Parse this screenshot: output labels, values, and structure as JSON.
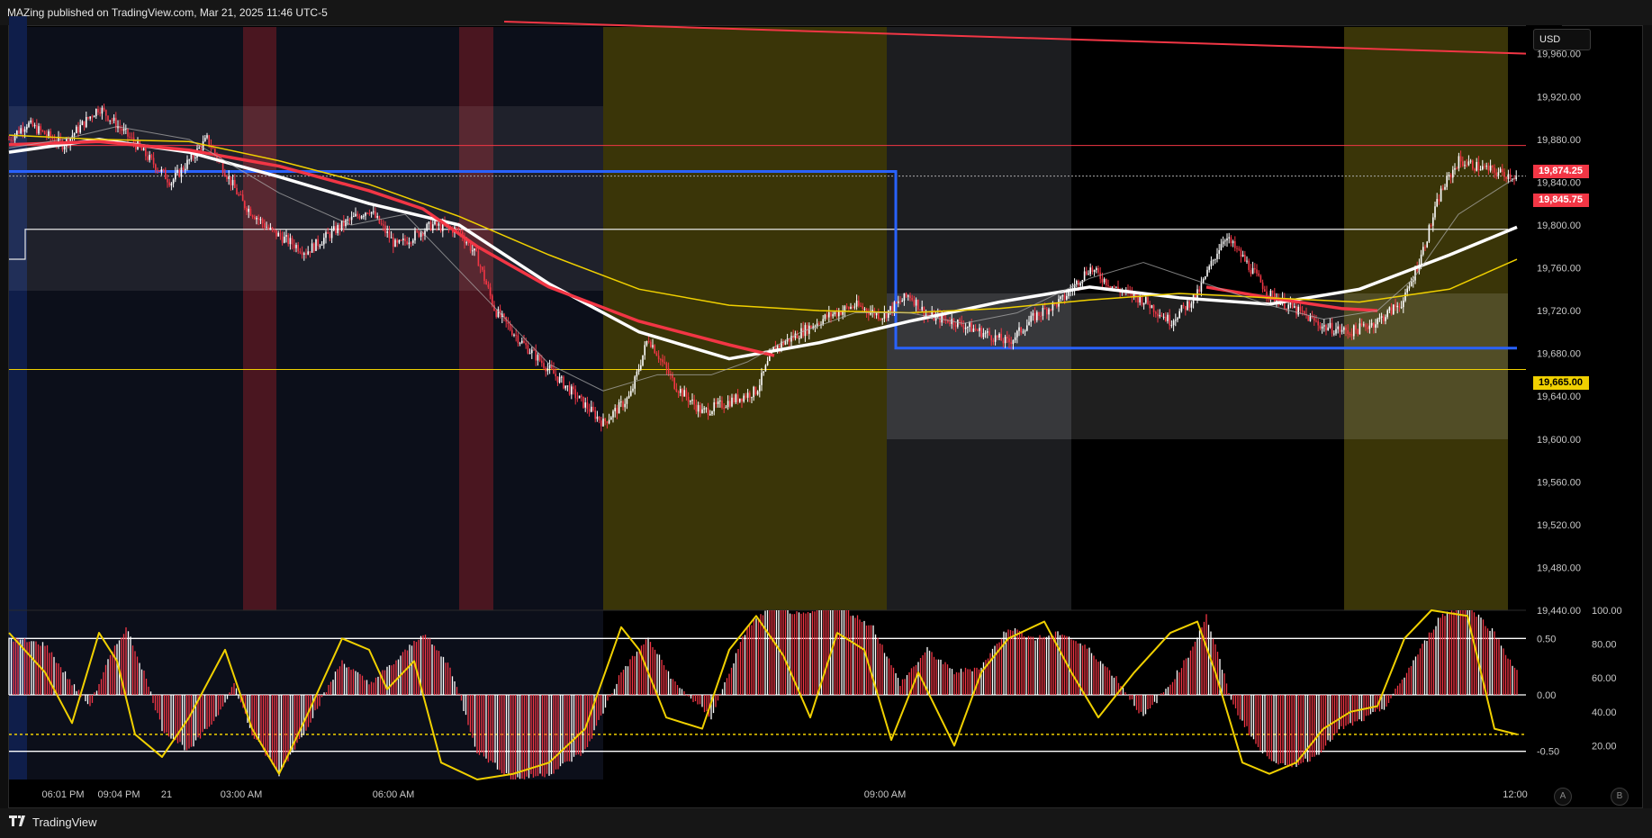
{
  "header": {
    "text": "MAZing published on TradingView.com, Mar 21, 2025 11:46 UTC-5"
  },
  "currency_button": "USD",
  "price_tags": {
    "upper_red": "19,874.25",
    "last_price": "19,845.75",
    "lower_yellow": "19,665.00"
  },
  "footer": {
    "brand": "TradingView",
    "logo_icon": "tradingview-logo-icon"
  },
  "corner_buttons": {
    "auto": "A",
    "log": "B"
  },
  "colors": {
    "up_candle": "#ffffff",
    "down_candle": "#f23645",
    "ma_fast": "#ffffff",
    "ma_red": "#f23645",
    "ma_yellow": "#f0d000",
    "range_box": "#2962ff",
    "yellow_session": "#3a3508",
    "grey_session": "#2e2f33",
    "red_band": "#4a1620",
    "blue_band": "#0f1e4a"
  },
  "chart_data": [
    {
      "type": "candlestick",
      "title": "",
      "y_axis": {
        "ticks": [
          "19,960.00",
          "19,920.00",
          "19,880.00",
          "19,840.00",
          "19,800.00",
          "19,760.00",
          "19,720.00",
          "19,680.00",
          "19,640.00",
          "19,600.00",
          "19,560.00",
          "19,520.00",
          "19,480.00",
          "19,440.00"
        ],
        "range": [
          19440,
          19985
        ]
      },
      "x_axis": {
        "ticks": [
          "06:01 PM",
          "09:04 PM",
          "21",
          "03:00 AM",
          "06:00 AM",
          "09:00 AM",
          "12:00"
        ]
      },
      "horizontal_levels": [
        19874.25,
        19845.75,
        19665.0,
        19796
      ],
      "price_path": [
        [
          0,
          19880
        ],
        [
          20,
          19895
        ],
        [
          60,
          19875
        ],
        [
          100,
          19910
        ],
        [
          130,
          19885
        ],
        [
          180,
          19840
        ],
        [
          220,
          19880
        ],
        [
          260,
          19820
        ],
        [
          290,
          19795
        ],
        [
          330,
          19775
        ],
        [
          370,
          19800
        ],
        [
          400,
          19815
        ],
        [
          430,
          19780
        ],
        [
          470,
          19800
        ],
        [
          500,
          19795
        ],
        [
          520,
          19770
        ],
        [
          540,
          19720
        ],
        [
          570,
          19690
        ],
        [
          600,
          19665
        ],
        [
          630,
          19640
        ],
        [
          660,
          19615
        ],
        [
          690,
          19640
        ],
        [
          710,
          19695
        ],
        [
          740,
          19650
        ],
        [
          770,
          19625
        ],
        [
          800,
          19635
        ],
        [
          830,
          19645
        ],
        [
          850,
          19685
        ],
        [
          880,
          19700
        ],
        [
          910,
          19715
        ],
        [
          940,
          19725
        ],
        [
          970,
          19715
        ],
        [
          1000,
          19735
        ],
        [
          1020,
          19715
        ],
        [
          1050,
          19710
        ],
        [
          1080,
          19700
        ],
        [
          1110,
          19690
        ],
        [
          1140,
          19715
        ],
        [
          1170,
          19730
        ],
        [
          1200,
          19760
        ],
        [
          1230,
          19740
        ],
        [
          1260,
          19730
        ],
        [
          1290,
          19710
        ],
        [
          1320,
          19735
        ],
        [
          1350,
          19790
        ],
        [
          1370,
          19770
        ],
        [
          1400,
          19735
        ],
        [
          1430,
          19720
        ],
        [
          1460,
          19705
        ],
        [
          1490,
          19700
        ],
        [
          1520,
          19710
        ],
        [
          1550,
          19730
        ],
        [
          1570,
          19775
        ],
        [
          1590,
          19830
        ],
        [
          1610,
          19860
        ],
        [
          1630,
          19855
        ],
        [
          1650,
          19850
        ],
        [
          1675,
          19845
        ]
      ],
      "moving_averages": [
        {
          "name": "",
          "color": "#ffffff",
          "points": [
            [
              0,
              19868
            ],
            [
              100,
              19880
            ],
            [
              200,
              19868
            ],
            [
              300,
              19845
            ],
            [
              400,
              19820
            ],
            [
              500,
              19800
            ],
            [
              600,
              19745
            ],
            [
              700,
              19700
            ],
            [
              800,
              19675
            ],
            [
              900,
              19690
            ],
            [
              1000,
              19710
            ],
            [
              1100,
              19728
            ],
            [
              1200,
              19742
            ],
            [
              1300,
              19732
            ],
            [
              1400,
              19726
            ],
            [
              1500,
              19740
            ],
            [
              1600,
              19772
            ],
            [
              1675,
              19798
            ]
          ]
        },
        {
          "name": "",
          "color": "#f23645",
          "points": [
            [
              0,
              19875
            ],
            [
              100,
              19878
            ],
            [
              200,
              19870
            ],
            [
              300,
              19855
            ],
            [
              400,
              19832
            ],
            [
              460,
              19815
            ],
            [
              520,
              19780
            ],
            [
              600,
              19742
            ],
            [
              700,
              19710
            ],
            [
              800,
              19688
            ],
            [
              850,
              19678
            ]
          ]
        },
        {
          "name": "",
          "color": "#f23645",
          "points": [
            [
              1330,
              19742
            ],
            [
              1400,
              19732
            ],
            [
              1480,
              19722
            ],
            [
              1520,
              19720
            ]
          ]
        },
        {
          "name": "",
          "color": "#f0d000",
          "points": [
            [
              0,
              19884
            ],
            [
              100,
              19880
            ],
            [
              200,
              19878
            ],
            [
              300,
              19860
            ],
            [
              400,
              19838
            ],
            [
              500,
              19808
            ],
            [
              600,
              19772
            ],
            [
              700,
              19740
            ],
            [
              800,
              19725
            ],
            [
              900,
              19720
            ],
            [
              1000,
              19718
            ],
            [
              1100,
              19722
            ],
            [
              1200,
              19730
            ],
            [
              1300,
              19736
            ],
            [
              1400,
              19732
            ],
            [
              1500,
              19728
            ],
            [
              1600,
              19740
            ],
            [
              1675,
              19768
            ]
          ]
        },
        {
          "name": "",
          "color": "#b0b0b0",
          "points": [
            [
              0,
              19872
            ],
            [
              60,
              19880
            ],
            [
              120,
              19892
            ],
            [
              200,
              19880
            ],
            [
              300,
              19830
            ],
            [
              380,
              19800
            ],
            [
              440,
              19810
            ],
            [
              520,
              19740
            ],
            [
              600,
              19670
            ],
            [
              660,
              19645
            ],
            [
              720,
              19660
            ],
            [
              780,
              19660
            ],
            [
              820,
              19672
            ],
            [
              880,
              19700
            ],
            [
              940,
              19718
            ],
            [
              1000,
              19718
            ],
            [
              1060,
              19708
            ],
            [
              1120,
              19718
            ],
            [
              1200,
              19750
            ],
            [
              1260,
              19765
            ],
            [
              1330,
              19745
            ],
            [
              1400,
              19725
            ],
            [
              1460,
              19712
            ],
            [
              1520,
              19720
            ],
            [
              1560,
              19750
            ],
            [
              1610,
              19810
            ],
            [
              1675,
              19845
            ]
          ]
        }
      ],
      "range_boxes": [
        {
          "x_range": [
            0,
            985
          ],
          "y": 19850,
          "y_bottom": 19685
        }
      ],
      "red_trend_line": [
        [
          550,
          19990
        ],
        [
          1675,
          19960
        ]
      ]
    },
    {
      "type": "oscillator",
      "left_axis_ticks": [
        "0.50",
        "0.00",
        "-0.50"
      ],
      "right_axis_ticks": [
        "100.00",
        "80.00",
        "60.00",
        "40.00",
        "20.00"
      ],
      "histogram_range": [
        -0.75,
        0.75
      ],
      "line_color": "#f0d000",
      "histogram_path": [
        [
          0,
          0.5
        ],
        [
          40,
          0.45
        ],
        [
          70,
          0.1
        ],
        [
          90,
          -0.1
        ],
        [
          110,
          0.3
        ],
        [
          130,
          0.6
        ],
        [
          150,
          0.2
        ],
        [
          170,
          -0.3
        ],
        [
          200,
          -0.5
        ],
        [
          230,
          -0.2
        ],
        [
          250,
          0.1
        ],
        [
          270,
          -0.35
        ],
        [
          300,
          -0.7
        ],
        [
          330,
          -0.3
        ],
        [
          370,
          0.3
        ],
        [
          400,
          0.1
        ],
        [
          430,
          0.3
        ],
        [
          460,
          0.55
        ],
        [
          490,
          0.25
        ],
        [
          520,
          -0.5
        ],
        [
          560,
          -0.75
        ],
        [
          600,
          -0.7
        ],
        [
          640,
          -0.5
        ],
        [
          680,
          0.2
        ],
        [
          710,
          0.5
        ],
        [
          740,
          0.1
        ],
        [
          780,
          -0.2
        ],
        [
          820,
          0.6
        ],
        [
          850,
          0.8
        ],
        [
          880,
          0.7
        ],
        [
          920,
          0.8
        ],
        [
          960,
          0.6
        ],
        [
          990,
          0.1
        ],
        [
          1020,
          0.4
        ],
        [
          1050,
          0.2
        ],
        [
          1080,
          0.25
        ],
        [
          1110,
          0.6
        ],
        [
          1140,
          0.5
        ],
        [
          1170,
          0.55
        ],
        [
          1200,
          0.4
        ],
        [
          1230,
          0.15
        ],
        [
          1260,
          -0.2
        ],
        [
          1290,
          0.1
        ],
        [
          1310,
          0.35
        ],
        [
          1330,
          0.7
        ],
        [
          1360,
          -0.1
        ],
        [
          1390,
          -0.5
        ],
        [
          1420,
          -0.65
        ],
        [
          1450,
          -0.55
        ],
        [
          1480,
          -0.3
        ],
        [
          1510,
          -0.2
        ],
        [
          1530,
          -0.1
        ],
        [
          1560,
          0.3
        ],
        [
          1590,
          0.7
        ],
        [
          1620,
          0.8
        ],
        [
          1650,
          0.55
        ],
        [
          1675,
          0.2
        ]
      ],
      "signal_path": [
        [
          0,
          0.55
        ],
        [
          40,
          0.2
        ],
        [
          70,
          -0.25
        ],
        [
          100,
          0.55
        ],
        [
          120,
          0.3
        ],
        [
          140,
          -0.35
        ],
        [
          170,
          -0.55
        ],
        [
          200,
          -0.2
        ],
        [
          240,
          0.4
        ],
        [
          270,
          -0.3
        ],
        [
          300,
          -0.7
        ],
        [
          330,
          -0.2
        ],
        [
          370,
          0.5
        ],
        [
          400,
          0.4
        ],
        [
          420,
          0.05
        ],
        [
          450,
          0.3
        ],
        [
          480,
          -0.6
        ],
        [
          520,
          -0.75
        ],
        [
          560,
          -0.7
        ],
        [
          600,
          -0.6
        ],
        [
          640,
          -0.3
        ],
        [
          680,
          0.6
        ],
        [
          700,
          0.4
        ],
        [
          730,
          -0.2
        ],
        [
          770,
          -0.3
        ],
        [
          800,
          0.4
        ],
        [
          830,
          0.7
        ],
        [
          860,
          0.35
        ],
        [
          890,
          -0.2
        ],
        [
          920,
          0.55
        ],
        [
          950,
          0.4
        ],
        [
          980,
          -0.4
        ],
        [
          1010,
          0.2
        ],
        [
          1050,
          -0.45
        ],
        [
          1080,
          0.2
        ],
        [
          1110,
          0.5
        ],
        [
          1150,
          0.65
        ],
        [
          1180,
          0.2
        ],
        [
          1210,
          -0.2
        ],
        [
          1250,
          0.2
        ],
        [
          1290,
          0.55
        ],
        [
          1320,
          0.65
        ],
        [
          1340,
          0.2
        ],
        [
          1370,
          -0.6
        ],
        [
          1400,
          -0.7
        ],
        [
          1430,
          -0.6
        ],
        [
          1460,
          -0.3
        ],
        [
          1490,
          -0.15
        ],
        [
          1520,
          -0.1
        ],
        [
          1550,
          0.5
        ],
        [
          1580,
          0.75
        ],
        [
          1620,
          0.7
        ],
        [
          1650,
          -0.3
        ],
        [
          1675,
          -0.35
        ]
      ],
      "horizontal_levels": [
        0.5,
        0.0,
        -0.35,
        -0.5
      ]
    }
  ]
}
